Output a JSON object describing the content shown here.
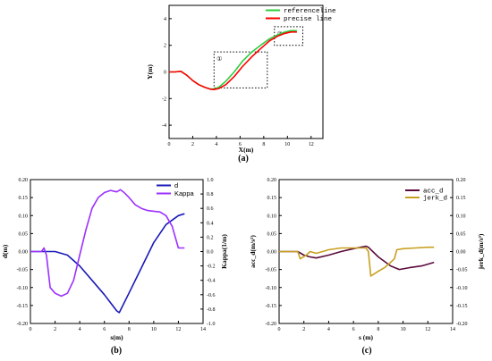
{
  "chart_data": [
    {
      "type": "line",
      "panel_label": "(a)",
      "xlabel": "X(m)",
      "ylabel": "Y(m)",
      "xlim": [
        0,
        13
      ],
      "ylim": [
        -5,
        5
      ],
      "xticks": [
        0,
        2,
        4,
        6,
        8,
        10,
        12
      ],
      "yticks": [
        -4,
        -2,
        0,
        2,
        4
      ],
      "series": [
        {
          "name": "referenceline",
          "color": "#2ecc40",
          "x": [
            0,
            0.5,
            1.0,
            1.5,
            2.0,
            2.5,
            3.0,
            3.5,
            3.8,
            4.2,
            4.8,
            5.5,
            6.2,
            7.0,
            7.8,
            8.5,
            9.2,
            9.8,
            10.3,
            10.8
          ],
          "y": [
            0,
            0,
            0.05,
            -0.25,
            -0.65,
            -0.95,
            -1.15,
            -1.28,
            -1.28,
            -1.15,
            -0.7,
            0.0,
            0.8,
            1.5,
            2.05,
            2.5,
            2.8,
            3.0,
            3.1,
            3.1
          ]
        },
        {
          "name": "precise line",
          "color": "#ff0000",
          "x": [
            0,
            0.5,
            1.0,
            1.5,
            2.0,
            2.5,
            3.0,
            3.5,
            3.8,
            4.2,
            4.8,
            5.5,
            6.2,
            7.0,
            7.8,
            8.5,
            9.2,
            9.8,
            10.3,
            10.8
          ],
          "y": [
            0,
            0,
            0.05,
            -0.25,
            -0.65,
            -0.95,
            -1.15,
            -1.3,
            -1.32,
            -1.25,
            -0.95,
            -0.35,
            0.4,
            1.15,
            1.8,
            2.35,
            2.7,
            2.9,
            3.0,
            3.0
          ]
        }
      ],
      "annotations": [
        {
          "label": "①",
          "box": {
            "x0": 3.8,
            "x1": 8.3,
            "y0": -1.2,
            "y1": 1.5
          }
        },
        {
          "label": "②",
          "box": {
            "x0": 8.9,
            "x1": 11.3,
            "y0": 2.0,
            "y1": 3.4
          }
        }
      ]
    },
    {
      "type": "line",
      "panel_label": "(b)",
      "xlabel": "s(m)",
      "ylabel": "d(m)",
      "ylabel_right": "Kappa(1/m)",
      "xlim": [
        0,
        14
      ],
      "ylim": [
        -0.2,
        0.2
      ],
      "ylim_right": [
        -1.0,
        1.0
      ],
      "xticks": [
        0,
        2,
        4,
        6,
        8,
        10,
        12,
        14
      ],
      "yticks": [
        -0.2,
        -0.15,
        -0.1,
        -0.05,
        0.0,
        0.05,
        0.1,
        0.15,
        0.2
      ],
      "yticks_right": [
        -1.0,
        -0.8,
        -0.6,
        -0.4,
        -0.2,
        0.0,
        0.2,
        0.4,
        0.6,
        0.8,
        1.0
      ],
      "yticklabels": [
        "-0.20",
        "-0.15",
        "-0.10",
        "-0.05",
        "0.00",
        "0.05",
        "0.10",
        "0.15",
        "0.20"
      ],
      "yticklabels_right": [
        "-1.0",
        "-0.8",
        "-0.6",
        "-0.4",
        "-0.2",
        "0.0",
        "0.2",
        "0.4",
        "0.6",
        "0.8",
        "1.0"
      ],
      "series": [
        {
          "name": "d",
          "color": "#1a1ab8",
          "axis": "left",
          "x": [
            0,
            1.0,
            2.0,
            3.0,
            4.0,
            5.0,
            6.0,
            7.0,
            7.2,
            8.0,
            9.0,
            10.0,
            11.0,
            12.0,
            12.5
          ],
          "y": [
            0,
            0,
            0,
            -0.01,
            -0.04,
            -0.08,
            -0.12,
            -0.165,
            -0.17,
            -0.115,
            -0.045,
            0.025,
            0.075,
            0.1,
            0.105
          ]
        },
        {
          "name": "Kappa",
          "color": "#9b30ff",
          "axis": "right",
          "x": [
            0,
            0.5,
            0.9,
            1.1,
            1.3,
            1.6,
            2.0,
            2.5,
            3.0,
            3.5,
            4.0,
            4.5,
            5.0,
            5.5,
            6.0,
            6.5,
            7.0,
            7.3,
            7.6,
            8.0,
            8.5,
            9.0,
            9.5,
            10.0,
            10.5,
            11.0,
            11.5,
            12.0,
            12.5
          ],
          "y": [
            0,
            0.0,
            0.0,
            0.05,
            -0.05,
            -0.5,
            -0.58,
            -0.62,
            -0.58,
            -0.4,
            -0.05,
            0.3,
            0.6,
            0.75,
            0.82,
            0.85,
            0.83,
            0.86,
            0.82,
            0.75,
            0.65,
            0.6,
            0.57,
            0.56,
            0.55,
            0.5,
            0.35,
            0.05,
            0.05
          ]
        }
      ]
    },
    {
      "type": "line",
      "panel_label": "(c)",
      "xlabel": "s (m)",
      "ylabel": "acc_d(m/s²)",
      "ylabel_right": "jerk_d(m/s³)",
      "xlim": [
        0,
        14
      ],
      "ylim": [
        -0.2,
        0.2
      ],
      "ylim_right": [
        -0.2,
        0.2
      ],
      "xticks": [
        0,
        2,
        4,
        6,
        8,
        10,
        12,
        14
      ],
      "yticks": [
        -0.2,
        -0.15,
        -0.1,
        -0.05,
        0.0,
        0.05,
        0.1,
        0.15,
        0.2
      ],
      "yticklabels": [
        "-0.20",
        "-0.15",
        "-0.10",
        "-0.05",
        "0.00",
        "0.05",
        "0.10",
        "0.15",
        "0.20"
      ],
      "series": [
        {
          "name": "acc_d",
          "color": "#5a0a3c",
          "axis": "left",
          "x": [
            0,
            1.5,
            2.0,
            2.5,
            3.0,
            4.0,
            5.0,
            6.0,
            7.0,
            7.2,
            8.0,
            9.0,
            9.7,
            10.5,
            11.5,
            12.5
          ],
          "y": [
            0,
            0,
            -0.01,
            -0.015,
            -0.018,
            -0.01,
            0.0,
            0.008,
            0.015,
            0.012,
            -0.015,
            -0.04,
            -0.05,
            -0.045,
            -0.04,
            -0.03
          ]
        },
        {
          "name": "jerk_d",
          "color": "#c8a020",
          "axis": "right",
          "x": [
            0,
            1.5,
            1.7,
            2.2,
            2.5,
            3.0,
            3.5,
            4.0,
            5.0,
            6.0,
            7.0,
            7.2,
            7.4,
            8.0,
            8.5,
            9.0,
            9.3,
            9.5,
            10.0,
            11.0,
            12.0,
            12.5
          ],
          "y": [
            0,
            0,
            -0.02,
            -0.01,
            0.0,
            -0.005,
            0.0,
            0.005,
            0.01,
            0.01,
            0.01,
            0.0,
            -0.068,
            -0.055,
            -0.045,
            -0.03,
            -0.02,
            0.005,
            0.008,
            0.01,
            0.012,
            0.012
          ]
        }
      ]
    }
  ]
}
